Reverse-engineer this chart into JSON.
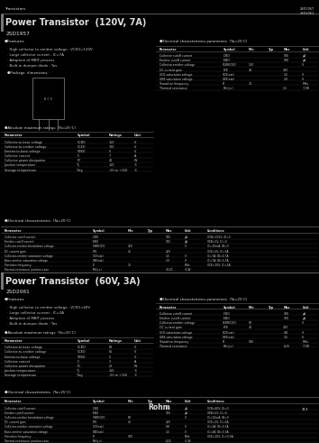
{
  "outer_bg": "#000000",
  "page_bg": "#1a1a1a",
  "text_color": "#cccccc",
  "title_color": "#dddddd",
  "line_color": "#555555",
  "accent_bar_color": "#888888",
  "top_header_left": "Transistors",
  "top_header_right": "2SD1957\n2SD2061",
  "section1_title": "Power Transistor  (120V, 7A)",
  "section1_sub": "2SD1957",
  "section2_title": "Power Transistor  (60V, 3A)",
  "section2_sub": "2SD2061",
  "footer_logo": "Rohm",
  "page_number": "313"
}
